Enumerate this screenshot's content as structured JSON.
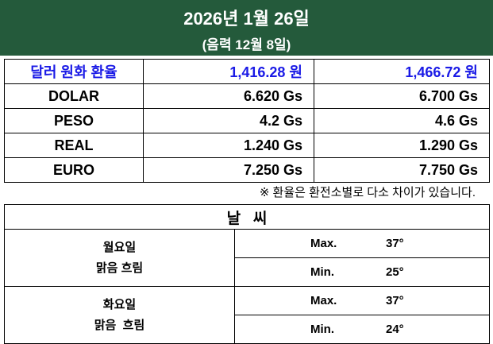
{
  "header": {
    "title": "2026년 1월 26일",
    "subtitle": "(음력 12월 8일)"
  },
  "exchange": {
    "header": [
      "달러 원화 환율",
      "1,416.28 원",
      "1,466.72 원"
    ],
    "rows": [
      [
        "DOLAR",
        "6.620 Gs",
        "6.700 Gs"
      ],
      [
        "PESO",
        "4.2 Gs",
        "4.6 Gs"
      ],
      [
        "REAL",
        "1.240 Gs",
        "1.290 Gs"
      ],
      [
        "EURO",
        "7.250 Gs",
        "7.750 Gs"
      ]
    ]
  },
  "note": "※ 환율은 환전소별로 다소 차이가 있습니다.",
  "weather": {
    "title": "날   씨",
    "days": [
      {
        "day": "월요일",
        "condition": "맑음 흐림",
        "max_label": "Max.",
        "max": "37°",
        "min_label": "Min.",
        "min": "25°"
      },
      {
        "day": "화요일",
        "condition": "맑음  흐림",
        "max_label": "Max.",
        "max": "37°",
        "min_label": "Min.",
        "min": "24°"
      }
    ]
  }
}
